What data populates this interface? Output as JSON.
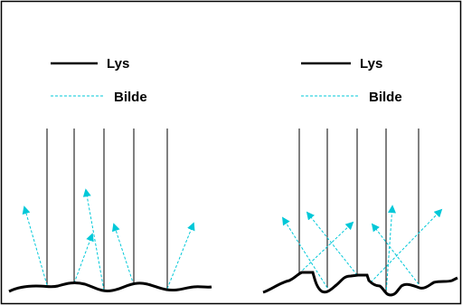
{
  "legend": {
    "light_label": "Lys",
    "image_label": "Bilde"
  },
  "colors": {
    "background": "#ffffff",
    "frame": "#000000",
    "light_ray": "#000000",
    "image_ray": "#00c8d8",
    "surface": "#000000"
  },
  "panels": [
    {
      "name": "left-panel",
      "surface_type": "smooth",
      "incident_rays": 5,
      "reflected_rays": 5
    },
    {
      "name": "right-panel",
      "surface_type": "rough",
      "incident_rays": 5,
      "reflected_rays": 5
    }
  ]
}
